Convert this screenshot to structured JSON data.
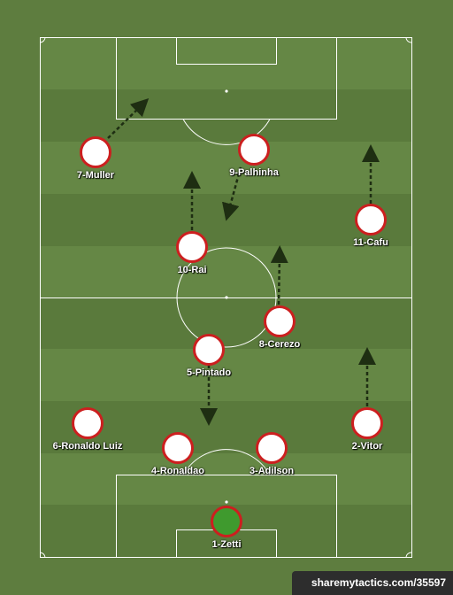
{
  "players": [
    {
      "label": "1-Zetti",
      "goalkeeper": true
    },
    {
      "label": "2-Vitor"
    },
    {
      "label": "3-Adilson"
    },
    {
      "label": "4-Ronaldao"
    },
    {
      "label": "5-Pintado"
    },
    {
      "label": "6-Ronaldo Luiz"
    },
    {
      "label": "7-Muller"
    },
    {
      "label": "8-Cerezo"
    },
    {
      "label": "9-Palhinha"
    },
    {
      "label": "10-Rai"
    },
    {
      "label": "11-Cafu"
    }
  ],
  "watermark": "sharemytactics.com/35597",
  "colors": {
    "kit_border": "#cc1f1f",
    "kit_fill": "#ffffff",
    "gk_fill": "#3f9a2e"
  }
}
